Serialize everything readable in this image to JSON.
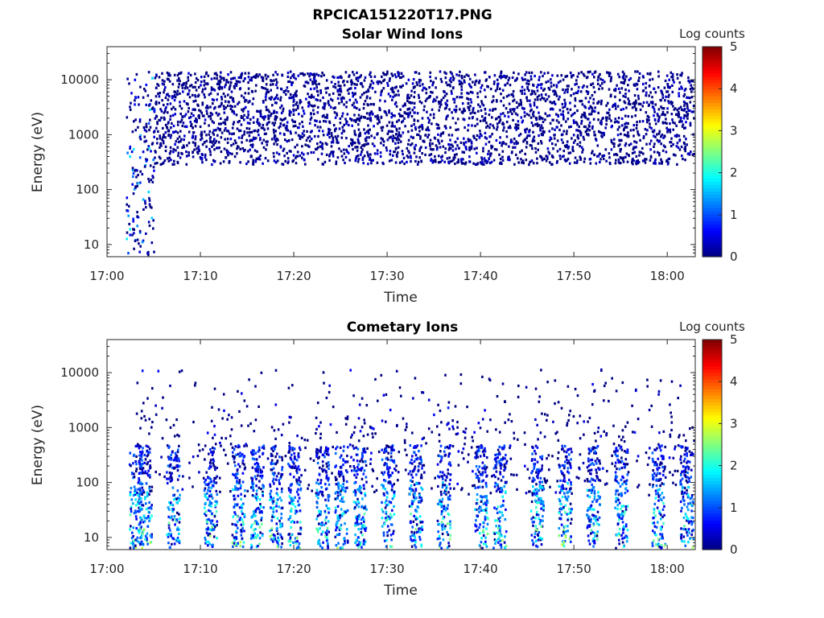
{
  "figure_title": "RPCICA151220T17.PNG",
  "chart_data": [
    {
      "type": "heatmap",
      "title": "Solar Wind Ions",
      "xlabel": "Time",
      "ylabel": "Energy (eV)",
      "x_ticks": [
        "17:00",
        "17:10",
        "17:20",
        "17:30",
        "17:40",
        "17:50",
        "18:00"
      ],
      "x_range": [
        "17:00",
        "18:03"
      ],
      "y_scale": "log",
      "y_ticks": [
        10,
        100,
        1000,
        10000
      ],
      "y_range": [
        6,
        40000
      ],
      "colorbar": {
        "label": "Log counts",
        "ticks": [
          0,
          1,
          2,
          3,
          4,
          5
        ],
        "range": [
          0,
          5
        ],
        "colormap": "jet"
      },
      "features": [
        {
          "time_range": [
            "17:02",
            "17:05"
          ],
          "energy_range_eV": [
            6,
            15000
          ],
          "log_counts": [
            0,
            2
          ]
        },
        {
          "time_range": [
            "17:05",
            "18:03"
          ],
          "energy_range_eV": [
            300,
            15000
          ],
          "log_counts": [
            0,
            0.5
          ]
        }
      ]
    },
    {
      "type": "heatmap",
      "title": "Cometary Ions",
      "xlabel": "Time",
      "ylabel": "Energy (eV)",
      "x_ticks": [
        "17:00",
        "17:10",
        "17:20",
        "17:30",
        "17:40",
        "17:50",
        "18:00"
      ],
      "x_range": [
        "17:00",
        "18:03"
      ],
      "y_scale": "log",
      "y_ticks": [
        10,
        100,
        1000,
        10000
      ],
      "y_range": [
        6,
        40000
      ],
      "colorbar": {
        "label": "Log counts",
        "ticks": [
          0,
          1,
          2,
          3,
          4,
          5
        ],
        "range": [
          0,
          5
        ],
        "colormap": "jet"
      },
      "bursts_times": [
        "17:03",
        "17:04",
        "17:07",
        "17:11",
        "17:14",
        "17:16",
        "17:18",
        "17:20",
        "17:23",
        "17:25",
        "17:27",
        "17:30",
        "17:33",
        "17:36",
        "17:40",
        "17:42",
        "17:46",
        "17:49",
        "17:52",
        "17:55",
        "17:59",
        "18:02"
      ],
      "bursts_energy_range_eV": [
        6,
        500
      ],
      "bursts_log_counts": [
        1,
        3
      ]
    }
  ]
}
